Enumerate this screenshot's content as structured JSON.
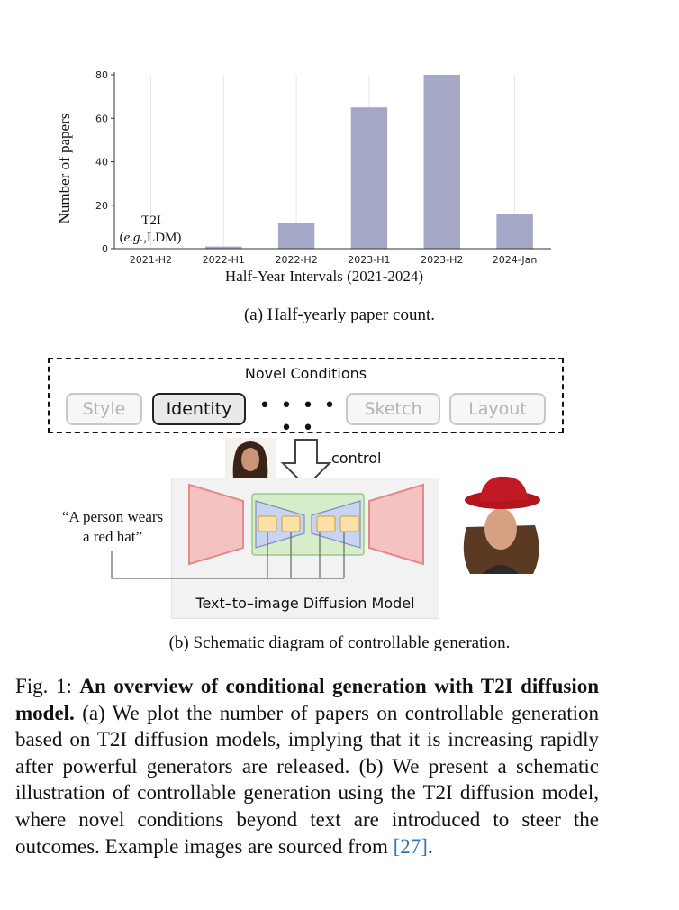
{
  "chart_data": {
    "type": "bar",
    "categories": [
      "2021-H2",
      "2022-H1",
      "2022-H2",
      "2023-H1",
      "2023-H2",
      "2024-Jan"
    ],
    "values": [
      0,
      1,
      12,
      65,
      80,
      16
    ],
    "xlabel": "Half-Year Intervals (2021-2024)",
    "ylabel": "Number of papers",
    "ylim": [
      0,
      80
    ],
    "yticks": [
      0,
      20,
      40,
      60,
      80
    ],
    "grid": "vertical",
    "bar_color": "#a4a7c5",
    "annotation": {
      "line1": "T2I",
      "line2_italic": "e.g.",
      "line2": ",LDM)",
      "line2_prefix": "("
    }
  },
  "caption_a": "(a) Half-yearly paper count.",
  "diagram": {
    "title": "Novel Conditions",
    "conditions": [
      "Style",
      "Identity",
      "Sketch",
      "Layout"
    ],
    "dots": "• • • • • •",
    "control_label": "control",
    "prompt_line1": "“A person wears",
    "prompt_line2": "a red hat”",
    "model_label": "Text–to–image Diffusion Model"
  },
  "caption_b": "(b) Schematic diagram of controllable generation.",
  "figure_text": {
    "label": "Fig. 1: ",
    "bold": "An overview of conditional generation with T2I diffusion model.",
    "body": " (a) We plot the number of papers on controllable generation based on T2I diffusion models, implying that it is increasing rapidly after powerful generators are released. (b) We present a schematic illustration of controllable generation using the T2I diffusion model, where novel conditions beyond text are introduced to steer the outcomes. Example images are sourced from ",
    "ref": "[27]",
    "end": "."
  }
}
